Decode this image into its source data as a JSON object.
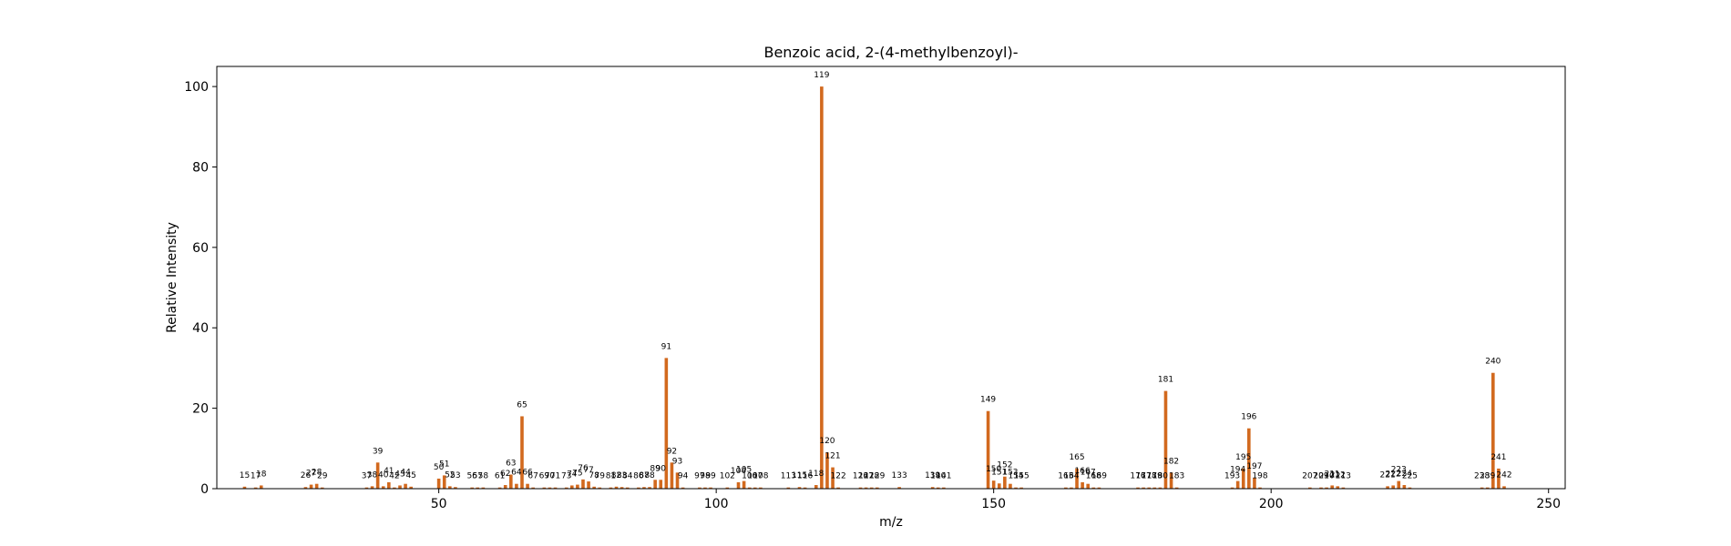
{
  "chart_data": {
    "type": "bar",
    "title": "Benzoic acid, 2-(4-methylbenzoyl)-",
    "xlabel": "m/z",
    "ylabel": "Relative Intensity",
    "xlim": [
      10,
      253
    ],
    "ylim": [
      0,
      105
    ],
    "xticks": [
      50,
      100,
      150,
      200,
      250
    ],
    "yticks": [
      0,
      20,
      40,
      60,
      80,
      100
    ],
    "grid": false,
    "bar_color": "#d2691e",
    "peaks": [
      {
        "mz": 15,
        "intensity": 0.5
      },
      {
        "mz": 17,
        "intensity": 0.3
      },
      {
        "mz": 18,
        "intensity": 0.8
      },
      {
        "mz": 26,
        "intensity": 0.4
      },
      {
        "mz": 27,
        "intensity": 1.0
      },
      {
        "mz": 28,
        "intensity": 1.2
      },
      {
        "mz": 29,
        "intensity": 0.3
      },
      {
        "mz": 37,
        "intensity": 0.3
      },
      {
        "mz": 38,
        "intensity": 0.6
      },
      {
        "mz": 39,
        "intensity": 6.5
      },
      {
        "mz": 40,
        "intensity": 0.6
      },
      {
        "mz": 41,
        "intensity": 1.6
      },
      {
        "mz": 42,
        "intensity": 0.3
      },
      {
        "mz": 43,
        "intensity": 0.8
      },
      {
        "mz": 44,
        "intensity": 1.2
      },
      {
        "mz": 45,
        "intensity": 0.5
      },
      {
        "mz": 50,
        "intensity": 2.5
      },
      {
        "mz": 51,
        "intensity": 3.3
      },
      {
        "mz": 52,
        "intensity": 0.6
      },
      {
        "mz": 53,
        "intensity": 0.4
      },
      {
        "mz": 56,
        "intensity": 0.3
      },
      {
        "mz": 57,
        "intensity": 0.3
      },
      {
        "mz": 58,
        "intensity": 0.3
      },
      {
        "mz": 61,
        "intensity": 0.3
      },
      {
        "mz": 62,
        "intensity": 0.9
      },
      {
        "mz": 63,
        "intensity": 3.5
      },
      {
        "mz": 64,
        "intensity": 1.2
      },
      {
        "mz": 65,
        "intensity": 18.0
      },
      {
        "mz": 66,
        "intensity": 1.2
      },
      {
        "mz": 67,
        "intensity": 0.3
      },
      {
        "mz": 69,
        "intensity": 0.3
      },
      {
        "mz": 70,
        "intensity": 0.3
      },
      {
        "mz": 71,
        "intensity": 0.3
      },
      {
        "mz": 73,
        "intensity": 0.3
      },
      {
        "mz": 74,
        "intensity": 0.8
      },
      {
        "mz": 75,
        "intensity": 1.0
      },
      {
        "mz": 76,
        "intensity": 2.3
      },
      {
        "mz": 77,
        "intensity": 1.8
      },
      {
        "mz": 78,
        "intensity": 0.5
      },
      {
        "mz": 79,
        "intensity": 0.3
      },
      {
        "mz": 81,
        "intensity": 0.3
      },
      {
        "mz": 82,
        "intensity": 0.5
      },
      {
        "mz": 83,
        "intensity": 0.4
      },
      {
        "mz": 84,
        "intensity": 0.3
      },
      {
        "mz": 86,
        "intensity": 0.3
      },
      {
        "mz": 87,
        "intensity": 0.4
      },
      {
        "mz": 88,
        "intensity": 0.4
      },
      {
        "mz": 89,
        "intensity": 2.2
      },
      {
        "mz": 90,
        "intensity": 2.2
      },
      {
        "mz": 91,
        "intensity": 32.5
      },
      {
        "mz": 92,
        "intensity": 6.5
      },
      {
        "mz": 93,
        "intensity": 4.0
      },
      {
        "mz": 94,
        "intensity": 0.3
      },
      {
        "mz": 97,
        "intensity": 0.3
      },
      {
        "mz": 98,
        "intensity": 0.3
      },
      {
        "mz": 99,
        "intensity": 0.3
      },
      {
        "mz": 102,
        "intensity": 0.3
      },
      {
        "mz": 104,
        "intensity": 1.6
      },
      {
        "mz": 105,
        "intensity": 1.9
      },
      {
        "mz": 106,
        "intensity": 0.3
      },
      {
        "mz": 107,
        "intensity": 0.3
      },
      {
        "mz": 108,
        "intensity": 0.3
      },
      {
        "mz": 113,
        "intensity": 0.3
      },
      {
        "mz": 115,
        "intensity": 0.4
      },
      {
        "mz": 116,
        "intensity": 0.3
      },
      {
        "mz": 118,
        "intensity": 0.9
      },
      {
        "mz": 119,
        "intensity": 100.0
      },
      {
        "mz": 120,
        "intensity": 9.0
      },
      {
        "mz": 121,
        "intensity": 5.3
      },
      {
        "mz": 122,
        "intensity": 0.3
      },
      {
        "mz": 126,
        "intensity": 0.3
      },
      {
        "mz": 127,
        "intensity": 0.3
      },
      {
        "mz": 128,
        "intensity": 0.3
      },
      {
        "mz": 129,
        "intensity": 0.3
      },
      {
        "mz": 133,
        "intensity": 0.4
      },
      {
        "mz": 139,
        "intensity": 0.4
      },
      {
        "mz": 140,
        "intensity": 0.3
      },
      {
        "mz": 141,
        "intensity": 0.3
      },
      {
        "mz": 149,
        "intensity": 19.3
      },
      {
        "mz": 150,
        "intensity": 2.0
      },
      {
        "mz": 151,
        "intensity": 1.3
      },
      {
        "mz": 152,
        "intensity": 3.0
      },
      {
        "mz": 153,
        "intensity": 1.2
      },
      {
        "mz": 154,
        "intensity": 0.3
      },
      {
        "mz": 155,
        "intensity": 0.3
      },
      {
        "mz": 163,
        "intensity": 0.3
      },
      {
        "mz": 164,
        "intensity": 0.3
      },
      {
        "mz": 165,
        "intensity": 5.0
      },
      {
        "mz": 166,
        "intensity": 1.6
      },
      {
        "mz": 167,
        "intensity": 1.2
      },
      {
        "mz": 168,
        "intensity": 0.3
      },
      {
        "mz": 169,
        "intensity": 0.3
      },
      {
        "mz": 176,
        "intensity": 0.3
      },
      {
        "mz": 177,
        "intensity": 0.3
      },
      {
        "mz": 178,
        "intensity": 0.3
      },
      {
        "mz": 179,
        "intensity": 0.3
      },
      {
        "mz": 180,
        "intensity": 0.3
      },
      {
        "mz": 181,
        "intensity": 24.3
      },
      {
        "mz": 182,
        "intensity": 4.0
      },
      {
        "mz": 183,
        "intensity": 0.3
      },
      {
        "mz": 193,
        "intensity": 0.3
      },
      {
        "mz": 194,
        "intensity": 1.9
      },
      {
        "mz": 195,
        "intensity": 5.0
      },
      {
        "mz": 196,
        "intensity": 15.0
      },
      {
        "mz": 197,
        "intensity": 2.7
      },
      {
        "mz": 198,
        "intensity": 0.3
      },
      {
        "mz": 207,
        "intensity": 0.3
      },
      {
        "mz": 209,
        "intensity": 0.3
      },
      {
        "mz": 210,
        "intensity": 0.3
      },
      {
        "mz": 211,
        "intensity": 0.8
      },
      {
        "mz": 212,
        "intensity": 0.6
      },
      {
        "mz": 213,
        "intensity": 0.3
      },
      {
        "mz": 221,
        "intensity": 0.6
      },
      {
        "mz": 222,
        "intensity": 0.8
      },
      {
        "mz": 223,
        "intensity": 1.9
      },
      {
        "mz": 224,
        "intensity": 0.9
      },
      {
        "mz": 225,
        "intensity": 0.3
      },
      {
        "mz": 238,
        "intensity": 0.3
      },
      {
        "mz": 239,
        "intensity": 0.3
      },
      {
        "mz": 240,
        "intensity": 28.8
      },
      {
        "mz": 241,
        "intensity": 5.0
      },
      {
        "mz": 242,
        "intensity": 0.6
      }
    ]
  }
}
